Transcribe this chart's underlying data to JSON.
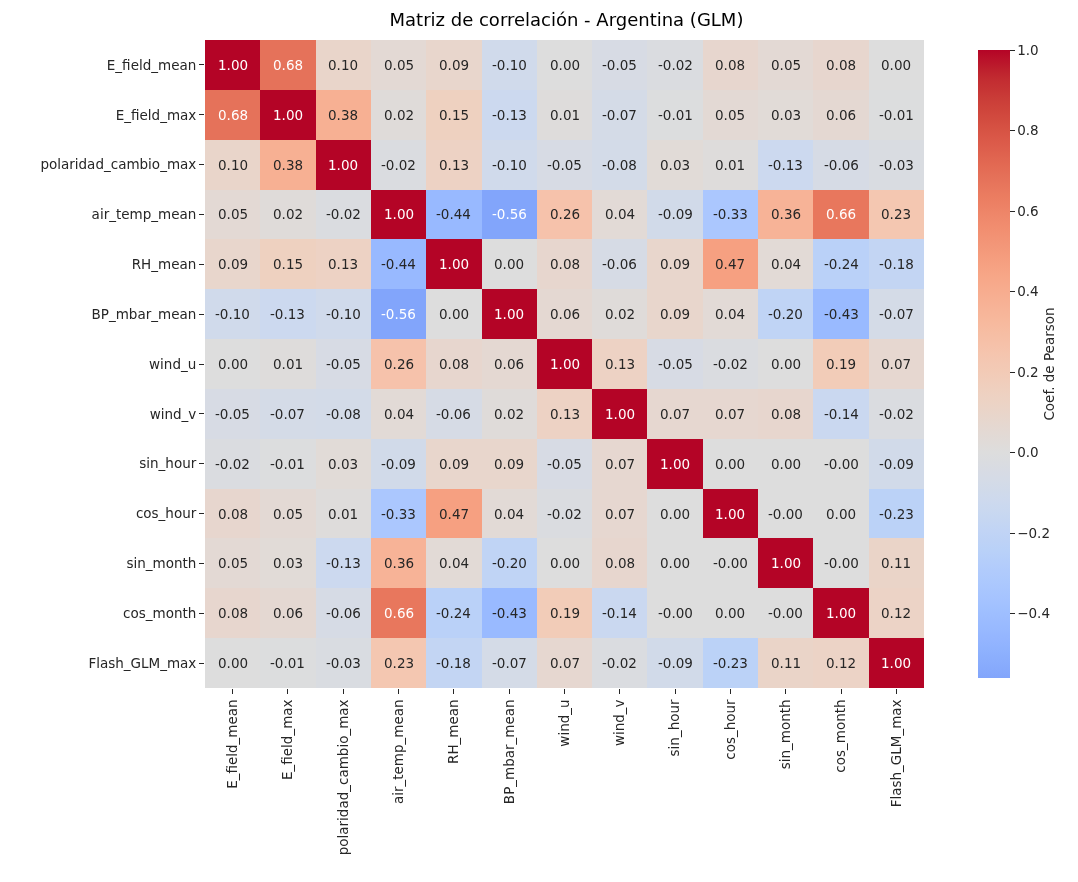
{
  "chart_data": {
    "type": "heatmap",
    "title": "Matriz de correlación - Argentina (GLM)",
    "clabel": "Coef. de Pearson",
    "categories": [
      "E_field_mean",
      "E_field_max",
      "polaridad_cambio_max",
      "air_temp_mean",
      "RH_mean",
      "BP_mbar_mean",
      "wind_u",
      "wind_v",
      "sin_hour",
      "cos_hour",
      "sin_month",
      "cos_month",
      "Flash_GLM_max"
    ],
    "y_categories": [
      "E_field_mean",
      "E_field_max",
      "polaridad_cambio_max",
      "air_temp_mean",
      "RH_mean",
      "BP_mbar_mean",
      "wind_u",
      "wind_v",
      "sin_hour",
      "cos_hour",
      "sin_month",
      "cos_month",
      "Flash_GLM_max"
    ],
    "cells": [
      [
        1.0,
        0.68,
        0.1,
        0.05,
        0.09,
        -0.1,
        0.0,
        -0.05,
        -0.02,
        0.08,
        0.05,
        0.08,
        0.0
      ],
      [
        0.68,
        1.0,
        0.38,
        0.02,
        0.15,
        -0.13,
        0.01,
        -0.07,
        -0.01,
        0.05,
        0.03,
        0.06,
        -0.01
      ],
      [
        0.1,
        0.38,
        1.0,
        -0.02,
        0.13,
        -0.1,
        -0.05,
        -0.08,
        0.03,
        0.01,
        -0.13,
        -0.06,
        -0.03
      ],
      [
        0.05,
        0.02,
        -0.02,
        1.0,
        -0.44,
        -0.56,
        0.26,
        0.04,
        -0.09,
        -0.33,
        0.36,
        0.66,
        0.23
      ],
      [
        0.09,
        0.15,
        0.13,
        -0.44,
        1.0,
        0.0,
        0.08,
        -0.06,
        0.09,
        0.47,
        0.04,
        -0.24,
        -0.18
      ],
      [
        -0.1,
        -0.13,
        -0.1,
        -0.56,
        0.0,
        1.0,
        0.06,
        0.02,
        0.09,
        0.04,
        -0.2,
        -0.43,
        -0.07
      ],
      [
        0.0,
        0.01,
        -0.05,
        0.26,
        0.08,
        0.06,
        1.0,
        0.13,
        -0.05,
        -0.02,
        0.0,
        0.19,
        0.07
      ],
      [
        -0.05,
        -0.07,
        -0.08,
        0.04,
        -0.06,
        0.02,
        0.13,
        1.0,
        0.07,
        0.07,
        0.08,
        -0.14,
        -0.02
      ],
      [
        -0.02,
        -0.01,
        0.03,
        -0.09,
        0.09,
        0.09,
        -0.05,
        0.07,
        1.0,
        0.0,
        0.0,
        0.0,
        -0.09
      ],
      [
        0.08,
        0.05,
        0.01,
        -0.33,
        0.47,
        0.04,
        -0.02,
        0.07,
        0.0,
        1.0,
        0.0,
        0.0,
        -0.23
      ],
      [
        0.05,
        0.03,
        -0.13,
        0.36,
        0.04,
        -0.2,
        0.0,
        0.08,
        0.0,
        0.0,
        1.0,
        0.0,
        0.11
      ],
      [
        0.08,
        0.06,
        -0.06,
        0.66,
        -0.24,
        -0.43,
        0.19,
        -0.14,
        0.0,
        0.0,
        0.0,
        1.0,
        0.12
      ],
      [
        0.0,
        -0.01,
        -0.03,
        0.23,
        -0.18,
        -0.07,
        0.07,
        -0.02,
        -0.09,
        -0.23,
        0.11,
        0.12,
        1.0
      ]
    ],
    "cell_labels": [
      [
        "1.00",
        "0.68",
        "0.10",
        "0.05",
        "0.09",
        "-0.10",
        "0.00",
        "-0.05",
        "-0.02",
        "0.08",
        "0.05",
        "0.08",
        "0.00"
      ],
      [
        "0.68",
        "1.00",
        "0.38",
        "0.02",
        "0.15",
        "-0.13",
        "0.01",
        "-0.07",
        "-0.01",
        "0.05",
        "0.03",
        "0.06",
        "-0.01"
      ],
      [
        "0.10",
        "0.38",
        "1.00",
        "-0.02",
        "0.13",
        "-0.10",
        "-0.05",
        "-0.08",
        "0.03",
        "0.01",
        "-0.13",
        "-0.06",
        "-0.03"
      ],
      [
        "0.05",
        "0.02",
        "-0.02",
        "1.00",
        "-0.44",
        "-0.56",
        "0.26",
        "0.04",
        "-0.09",
        "-0.33",
        "0.36",
        "0.66",
        "0.23"
      ],
      [
        "0.09",
        "0.15",
        "0.13",
        "-0.44",
        "1.00",
        "0.00",
        "0.08",
        "-0.06",
        "0.09",
        "0.47",
        "0.04",
        "-0.24",
        "-0.18"
      ],
      [
        "-0.10",
        "-0.13",
        "-0.10",
        "-0.56",
        "0.00",
        "1.00",
        "0.06",
        "0.02",
        "0.09",
        "0.04",
        "-0.20",
        "-0.43",
        "-0.07"
      ],
      [
        "0.00",
        "0.01",
        "-0.05",
        "0.26",
        "0.08",
        "0.06",
        "1.00",
        "0.13",
        "-0.05",
        "-0.02",
        "0.00",
        "0.19",
        "0.07"
      ],
      [
        "-0.05",
        "-0.07",
        "-0.08",
        "0.04",
        "-0.06",
        "0.02",
        "0.13",
        "1.00",
        "0.07",
        "0.07",
        "0.08",
        "-0.14",
        "-0.02"
      ],
      [
        "-0.02",
        "-0.01",
        "0.03",
        "-0.09",
        "0.09",
        "0.09",
        "-0.05",
        "0.07",
        "1.00",
        "0.00",
        "0.00",
        "-0.00",
        "-0.09"
      ],
      [
        "0.08",
        "0.05",
        "0.01",
        "-0.33",
        "0.47",
        "0.04",
        "-0.02",
        "0.07",
        "0.00",
        "1.00",
        "-0.00",
        "0.00",
        "-0.23"
      ],
      [
        "0.05",
        "0.03",
        "-0.13",
        "0.36",
        "0.04",
        "-0.20",
        "0.00",
        "0.08",
        "0.00",
        "-0.00",
        "1.00",
        "-0.00",
        "0.11"
      ],
      [
        "0.08",
        "0.06",
        "-0.06",
        "0.66",
        "-0.24",
        "-0.43",
        "0.19",
        "-0.14",
        "-0.00",
        "0.00",
        "-0.00",
        "1.00",
        "0.12"
      ],
      [
        "0.00",
        "-0.01",
        "-0.03",
        "0.23",
        "-0.18",
        "-0.07",
        "0.07",
        "-0.02",
        "-0.09",
        "-0.23",
        "0.11",
        "0.12",
        "1.00"
      ]
    ],
    "clim": [
      -0.56,
      1.0
    ],
    "cticks": [
      {
        "value": -0.4,
        "label": "−0.4"
      },
      {
        "value": -0.2,
        "label": "−0.2"
      },
      {
        "value": 0.0,
        "label": "0.0"
      },
      {
        "value": 0.2,
        "label": "0.2"
      },
      {
        "value": 0.4,
        "label": "0.4"
      },
      {
        "value": 0.6,
        "label": "0.6"
      },
      {
        "value": 0.8,
        "label": "0.8"
      },
      {
        "value": 1.0,
        "label": "1.0"
      }
    ]
  }
}
